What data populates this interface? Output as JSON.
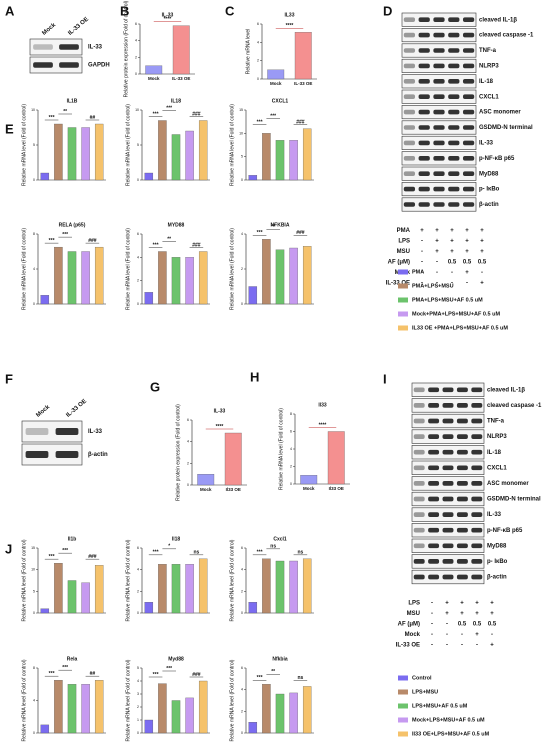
{
  "panels": [
    "A",
    "B",
    "C",
    "D",
    "E",
    "F",
    "G",
    "H",
    "I",
    "J"
  ],
  "blots": [
    {
      "lanes": [
        "Mock",
        "IL-33 OE"
      ],
      "bands": [
        "IL-33",
        "GAPDH"
      ]
    },
    {
      "bands": [
        "cleaved IL-1β",
        "cleaved caspase -1",
        "TNF-a",
        "NLRP3",
        "IL-18",
        "CXCL1",
        "ASC monomer",
        "GSDMD-N terminal",
        "IL-33",
        "p-NF-κB p65",
        "MyD88",
        "p- IκBo",
        "β-actin"
      ],
      "treatments": [
        {
          "label": "PMA",
          "cells": [
            "+",
            "+",
            "+",
            "+",
            "+"
          ]
        },
        {
          "label": "LPS",
          "cells": [
            "-",
            "+",
            "+",
            "+",
            "+"
          ]
        },
        {
          "label": "MSU",
          "cells": [
            "-",
            "+",
            "+",
            "+",
            "+"
          ]
        },
        {
          "label": "AF (μM)",
          "cells": [
            "-",
            "-",
            "0.5",
            "0.5",
            "0.5"
          ]
        },
        {
          "label": "Mock",
          "cells": [
            "-",
            "-",
            "-",
            "+",
            "-"
          ]
        },
        {
          "label": "IL-33 OE",
          "cells": [
            "-",
            "-",
            "-",
            "-",
            "+"
          ]
        }
      ]
    },
    {
      "lanes": [
        "Mock",
        "IL-33 OE"
      ],
      "bands": [
        "IL-33",
        "β-actin"
      ]
    },
    {
      "bands": [
        "cleaved IL-1β",
        "cleaved caspase -1",
        "TNF-a",
        "NLRP3",
        "IL-18",
        "CXCL1",
        "ASC monomer",
        "GSDMD-N terminal",
        "IL-33",
        "p-NF-κB p65",
        "MyD88",
        "p- IκBo",
        "β-actin"
      ],
      "treatments": [
        {
          "label": "LPS",
          "cells": [
            "-",
            "+",
            "+",
            "+",
            "+"
          ]
        },
        {
          "label": "MSU",
          "cells": [
            "-",
            "+",
            "+",
            "+",
            "+"
          ]
        },
        {
          "label": "AF (μM)",
          "cells": [
            "-",
            "-",
            "0.5",
            "0.5",
            "0.5"
          ]
        },
        {
          "label": "Mock",
          "cells": [
            "-",
            "-",
            "-",
            "+",
            "-"
          ]
        },
        {
          "label": "IL-33 OE",
          "cells": [
            "-",
            "-",
            "-",
            "-",
            "+"
          ]
        }
      ]
    }
  ],
  "legends": [
    [
      {
        "name": "PMA",
        "color": "#7b6cf0"
      },
      {
        "name": "PMA+LPS+MSU",
        "color": "#b88a6a"
      },
      {
        "name": "PMA+LPS+MSU+AF 0.5 uM",
        "color": "#6cc36c"
      },
      {
        "name": "Mock+PMA+LPS+MSU+AF 0.5 uM",
        "color": "#c69af0"
      },
      {
        "name": "IL33 OE +PMA+LPS+MSU+AF 0.5 uM",
        "color": "#f5c26b"
      }
    ],
    [
      {
        "name": "Control",
        "color": "#7b6cf0"
      },
      {
        "name": "LPS+MSU",
        "color": "#b88a6a"
      },
      {
        "name": "LPS+MSU+AF 0.5 uM",
        "color": "#6cc36c"
      },
      {
        "name": "Mock+LPS+MSU+AF 0.5 uM",
        "color": "#c69af0"
      },
      {
        "name": "Il33 OE+LPS+MSU+AF 0.5 uM",
        "color": "#f5c26b"
      }
    ]
  ],
  "chart_data": [
    {
      "type": "bar",
      "title": "IL-33",
      "ylabel": "Relative protein expression (Fold of control)",
      "categories": [
        "Mock",
        "IL-33 OE"
      ],
      "colors": [
        "#9a9af5",
        "#f49090"
      ],
      "values": [
        1,
        5.8
      ],
      "ylim": [
        0,
        6
      ],
      "yticks": [
        0,
        2,
        4,
        6
      ],
      "annotations": [
        "****"
      ]
    },
    {
      "type": "bar",
      "title": "IL33",
      "ylabel": "Relative mRNA level",
      "categories": [
        "Mock",
        "IL-33 OE"
      ],
      "colors": [
        "#9a9af5",
        "#f49090"
      ],
      "values": [
        1,
        5.1
      ],
      "ylim": [
        0,
        6
      ],
      "yticks": [
        0,
        2,
        4,
        6
      ],
      "annotations": [
        "****"
      ]
    },
    {
      "type": "bar",
      "title": "IL1B",
      "ylabel": "Relative mRNA level (Fold of control)",
      "values": [
        1,
        8,
        7.5,
        7.5,
        8
      ],
      "ylim": [
        0,
        10
      ],
      "yticks": [
        0,
        5,
        10
      ],
      "annotations": [
        "***",
        "**",
        "##"
      ]
    },
    {
      "type": "bar",
      "title": "IL18",
      "ylabel": "Relative mRNA level (Fold of control)",
      "values": [
        1,
        8.5,
        6.5,
        7,
        8.5
      ],
      "ylim": [
        0,
        10
      ],
      "yticks": [
        0,
        5,
        10
      ],
      "annotations": [
        "***",
        "***",
        "###"
      ]
    },
    {
      "type": "bar",
      "title": "CXCL1",
      "ylabel": "Relative mRNA level (Fold of control)",
      "values": [
        1,
        10,
        8.5,
        8.5,
        11
      ],
      "ylim": [
        0,
        15
      ],
      "yticks": [
        0,
        5,
        10,
        15
      ],
      "annotations": [
        "***",
        "***",
        "###"
      ]
    },
    {
      "type": "bar",
      "title": "RELA (p65)",
      "ylabel": "Relative mRNA level (Fold of control)",
      "values": [
        1,
        6.5,
        6,
        6,
        6.5
      ],
      "ylim": [
        0,
        8
      ],
      "yticks": [
        0,
        4,
        8
      ],
      "annotations": [
        "***",
        "***",
        "###"
      ]
    },
    {
      "type": "bar",
      "title": "MYD88",
      "ylabel": "Relative mRNA level (Fold of control)",
      "values": [
        1,
        4.5,
        4,
        4,
        4.5
      ],
      "ylim": [
        0,
        6
      ],
      "yticks": [
        0,
        2,
        4,
        6
      ],
      "annotations": [
        "***",
        "**",
        "###"
      ]
    },
    {
      "type": "bar",
      "title": "NFKBIA",
      "ylabel": "Relative mRNA level (Fold of control)",
      "values": [
        1,
        3.7,
        3.1,
        3.2,
        3.3
      ],
      "ylim": [
        0,
        4
      ],
      "yticks": [
        0,
        2,
        4
      ],
      "annotations": [
        "***",
        "**",
        "###"
      ]
    },
    {
      "type": "bar",
      "title": "IL-33",
      "ylabel": "Relative protein expression (Fold of control)",
      "categories": [
        "Mock",
        "Il33 OE"
      ],
      "colors": [
        "#9a9af5",
        "#f49090"
      ],
      "values": [
        1,
        4.8
      ],
      "ylim": [
        0,
        6
      ],
      "yticks": [
        0,
        2,
        4,
        6
      ],
      "annotations": [
        "****"
      ]
    },
    {
      "type": "bar",
      "title": "Il33",
      "ylabel": "Relative mRNA level (Fold of control)",
      "categories": [
        "Mock",
        "Il33 OE"
      ],
      "colors": [
        "#9a9af5",
        "#f49090"
      ],
      "values": [
        1,
        6
      ],
      "ylim": [
        0,
        8
      ],
      "yticks": [
        0,
        2,
        4,
        6,
        8
      ],
      "annotations": [
        "****"
      ]
    },
    {
      "type": "bar",
      "title": "Il1b",
      "ylabel": "Relative mRNA level (Fold of control)",
      "values": [
        1,
        11.5,
        7.5,
        7,
        11
      ],
      "ylim": [
        0,
        15
      ],
      "yticks": [
        0,
        5,
        10,
        15
      ],
      "annotations": [
        "***",
        "***",
        "###"
      ]
    },
    {
      "type": "bar",
      "title": "Il18",
      "ylabel": "Relative mRNA level (Fold of control)",
      "values": [
        1,
        4.5,
        4.5,
        4.5,
        5
      ],
      "ylim": [
        0,
        6
      ],
      "yticks": [
        0,
        2,
        4,
        6
      ],
      "annotations": [
        "***",
        "*",
        "ns"
      ]
    },
    {
      "type": "bar",
      "title": "Cxcl1",
      "ylabel": "Relative mRNA level (Fold of control)",
      "values": [
        1,
        5,
        4.8,
        4.8,
        5
      ],
      "ylim": [
        0,
        6
      ],
      "yticks": [
        0,
        2,
        4,
        6
      ],
      "annotations": [
        "***",
        "ns",
        "ns"
      ]
    },
    {
      "type": "bar",
      "title": "Rela",
      "ylabel": "Relative mRNA level (Fold of control)",
      "values": [
        1,
        6.5,
        6,
        6,
        6.5
      ],
      "ylim": [
        0,
        8
      ],
      "yticks": [
        0,
        4,
        8
      ],
      "annotations": [
        "***",
        "***",
        "##"
      ]
    },
    {
      "type": "bar",
      "title": "Myd88",
      "ylabel": "Relative mRNA level (Fold of control)",
      "values": [
        1,
        3.8,
        2.5,
        2.7,
        4
      ],
      "ylim": [
        0,
        5
      ],
      "yticks": [
        0,
        1,
        2,
        3,
        4,
        5
      ],
      "annotations": [
        "***",
        "***",
        "###"
      ]
    },
    {
      "type": "bar",
      "title": "Nfkbia",
      "ylabel": "Relative mRNA level (Fold of control)",
      "values": [
        1,
        4.5,
        3.6,
        3.7,
        4.3
      ],
      "ylim": [
        0,
        6
      ],
      "yticks": [
        0,
        2,
        4,
        6
      ],
      "annotations": [
        "***",
        "**",
        "ns"
      ]
    }
  ]
}
